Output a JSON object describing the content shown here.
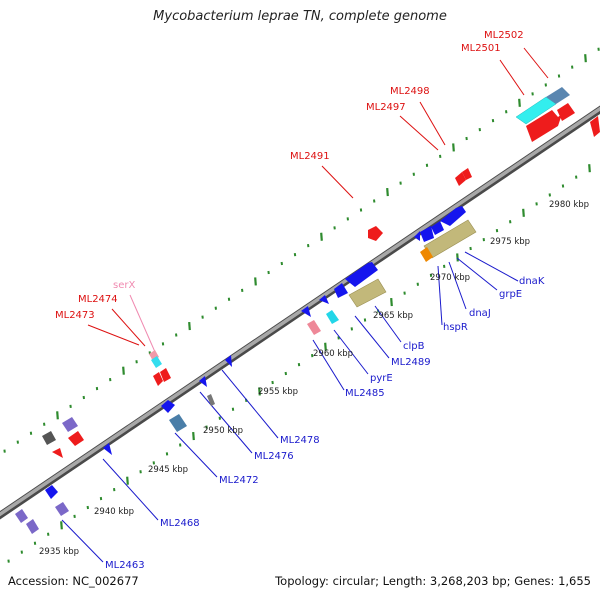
{
  "title": "Mycobacterium leprae TN, complete genome",
  "footer": {
    "accession": "Accession: NC_002677",
    "summary": "Topology: circular; Length: 3,268,203 bp; Genes: 1,655"
  },
  "colors": {
    "backbone": "#8e8e8e",
    "tick": "#2e8b2e",
    "red_label": "#dd1111",
    "blue_label": "#1a1acc",
    "pink_label": "#f08ab0"
  },
  "scale_labels": [
    "2935 kbp",
    "2940 kbp",
    "2945 kbp",
    "2950 kbp",
    "2955 kbp",
    "2960 kbp",
    "2965 kbp",
    "2970 kbp",
    "2975 kbp",
    "2980 kbp"
  ],
  "upper_labels": [
    {
      "text": "ML2502",
      "color": "red"
    },
    {
      "text": "ML2501",
      "color": "red"
    },
    {
      "text": "ML2498",
      "color": "red"
    },
    {
      "text": "ML2497",
      "color": "red"
    },
    {
      "text": "ML2491",
      "color": "red"
    },
    {
      "text": "serX",
      "color": "pink"
    },
    {
      "text": "ML2474",
      "color": "red"
    },
    {
      "text": "ML2473",
      "color": "red"
    }
  ],
  "lower_labels": [
    {
      "text": "dnaK"
    },
    {
      "text": "grpE"
    },
    {
      "text": "dnaJ"
    },
    {
      "text": "hspR"
    },
    {
      "text": "clpB"
    },
    {
      "text": "ML2489"
    },
    {
      "text": "pyrE"
    },
    {
      "text": "ML2485"
    },
    {
      "text": "ML2478"
    },
    {
      "text": "ML2476"
    },
    {
      "text": "ML2472"
    },
    {
      "text": "ML2468"
    },
    {
      "text": "ML2463"
    }
  ]
}
